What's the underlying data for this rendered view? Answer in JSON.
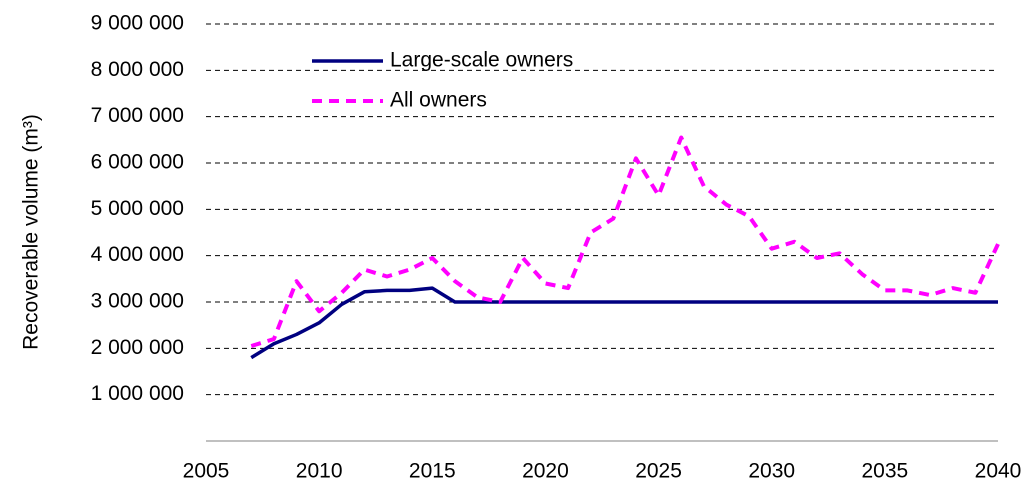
{
  "chart_data": {
    "type": "line",
    "ylabel": "Recoverable volume (m³)",
    "x": [
      2007,
      2008,
      2009,
      2010,
      2011,
      2012,
      2013,
      2014,
      2015,
      2016,
      2017,
      2018,
      2019,
      2020,
      2021,
      2022,
      2023,
      2024,
      2025,
      2026,
      2027,
      2028,
      2029,
      2030,
      2031,
      2032,
      2033,
      2034,
      2035,
      2036,
      2037,
      2038,
      2039,
      2040
    ],
    "series": [
      {
        "name": "Large-scale owners",
        "color": "#000080",
        "dashed": false,
        "values": [
          1800000,
          2100000,
          2300000,
          2550000,
          2950000,
          3220000,
          3250000,
          3250000,
          3300000,
          3000000,
          3000000,
          3000000,
          3000000,
          3000000,
          3000000,
          3000000,
          3000000,
          3000000,
          3000000,
          3000000,
          3000000,
          3000000,
          3000000,
          3000000,
          3000000,
          3000000,
          3000000,
          3000000,
          3000000,
          3000000,
          3000000,
          3000000,
          3000000,
          3000000
        ]
      },
      {
        "name": "All owners",
        "color": "#ff00ff",
        "dashed": true,
        "values": [
          2050000,
          2200000,
          3450000,
          2800000,
          3200000,
          3700000,
          3550000,
          3700000,
          3950000,
          3450000,
          3100000,
          3000000,
          3950000,
          3400000,
          3300000,
          4500000,
          4800000,
          6100000,
          5300000,
          6550000,
          5500000,
          5100000,
          4850000,
          4150000,
          4300000,
          3950000,
          4050000,
          3600000,
          3250000,
          3250000,
          3150000,
          3300000,
          3200000,
          4250000
        ]
      }
    ],
    "xlim": [
      2005,
      2040
    ],
    "xticks": [
      2005,
      2010,
      2015,
      2020,
      2025,
      2030,
      2035,
      2040
    ],
    "ylim": [
      0,
      9000000
    ],
    "yticks": [
      {
        "value": 1000000,
        "label": "1 000 000"
      },
      {
        "value": 2000000,
        "label": "2 000 000"
      },
      {
        "value": 3000000,
        "label": "3 000 000"
      },
      {
        "value": 4000000,
        "label": "4 000 000"
      },
      {
        "value": 5000000,
        "label": "5 000 000"
      },
      {
        "value": 6000000,
        "label": "6 000 000"
      },
      {
        "value": 7000000,
        "label": "7 000 000"
      },
      {
        "value": 8000000,
        "label": "8 000 000"
      },
      {
        "value": 9000000,
        "label": "9 000 000"
      }
    ],
    "grid": true
  }
}
